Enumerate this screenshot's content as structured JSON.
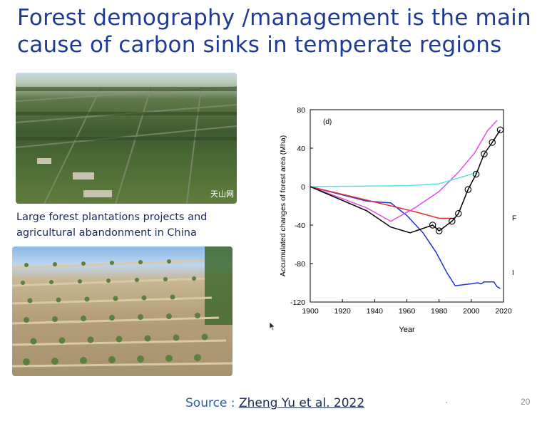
{
  "slide": {
    "title": "Forest demography /management is the main cause of carbon sinks in temperate regions",
    "caption": "Large forest plantations projects and agricultural abandonment in China",
    "source_prefix": "Source : ",
    "source_link": "Zheng Yu et al. 2022",
    "page_number": "20",
    "photo1_watermark": "天山网"
  },
  "chart_data": {
    "type": "line",
    "panel_label": "(d)",
    "xlabel": "Year",
    "ylabel": "Accumulated changes of forest area (Mha)",
    "xlim": [
      1900,
      2020
    ],
    "ylim": [
      -120,
      80
    ],
    "xticks": [
      1900,
      1920,
      1940,
      1960,
      1980,
      2000,
      2020
    ],
    "yticks": [
      80,
      40,
      0,
      -40,
      -80,
      -120
    ],
    "side_labels": [
      "F",
      "I"
    ],
    "series": [
      {
        "color": "#1f2fd6",
        "x": [
          1900,
          1935,
          1950,
          1960,
          1970,
          1978,
          1985,
          1990,
          2000,
          2004,
          2006,
          2008,
          2014,
          2016,
          2018
        ],
        "y": [
          0,
          -15,
          -17,
          -30,
          -48,
          -68,
          -90,
          -103,
          -101,
          -100,
          -101,
          -99,
          -99,
          -104,
          -106
        ],
        "markers": false
      },
      {
        "color": "#e03030",
        "x": [
          1900,
          1925,
          1950,
          1965,
          1980,
          1990
        ],
        "y": [
          0,
          -10,
          -20,
          -26,
          -33,
          -33
        ],
        "markers": false
      },
      {
        "color": "#e050e0",
        "x": [
          1900,
          1935,
          1950,
          1965,
          1980,
          1992,
          2002,
          2010,
          2016
        ],
        "y": [
          0,
          -22,
          -36,
          -22,
          -5,
          15,
          35,
          58,
          69
        ],
        "markers": false
      },
      {
        "color": "#55e0e8",
        "x": [
          1900,
          1960,
          1980,
          2004
        ],
        "y": [
          0,
          1,
          3,
          15
        ],
        "markers": false
      },
      {
        "color": "#000000",
        "x": [
          1900,
          1935,
          1950,
          1962,
          1976,
          1980,
          1988,
          1992,
          1998,
          2003,
          2008,
          2013,
          2018
        ],
        "y": [
          0,
          -25,
          -42,
          -48,
          -40,
          -46,
          -36,
          -28,
          -3,
          13,
          34,
          46,
          59
        ],
        "markers": true,
        "marker_x": [
          1976,
          1980,
          1988,
          1992,
          1998,
          2003,
          2008,
          2013,
          2018
        ]
      }
    ]
  }
}
